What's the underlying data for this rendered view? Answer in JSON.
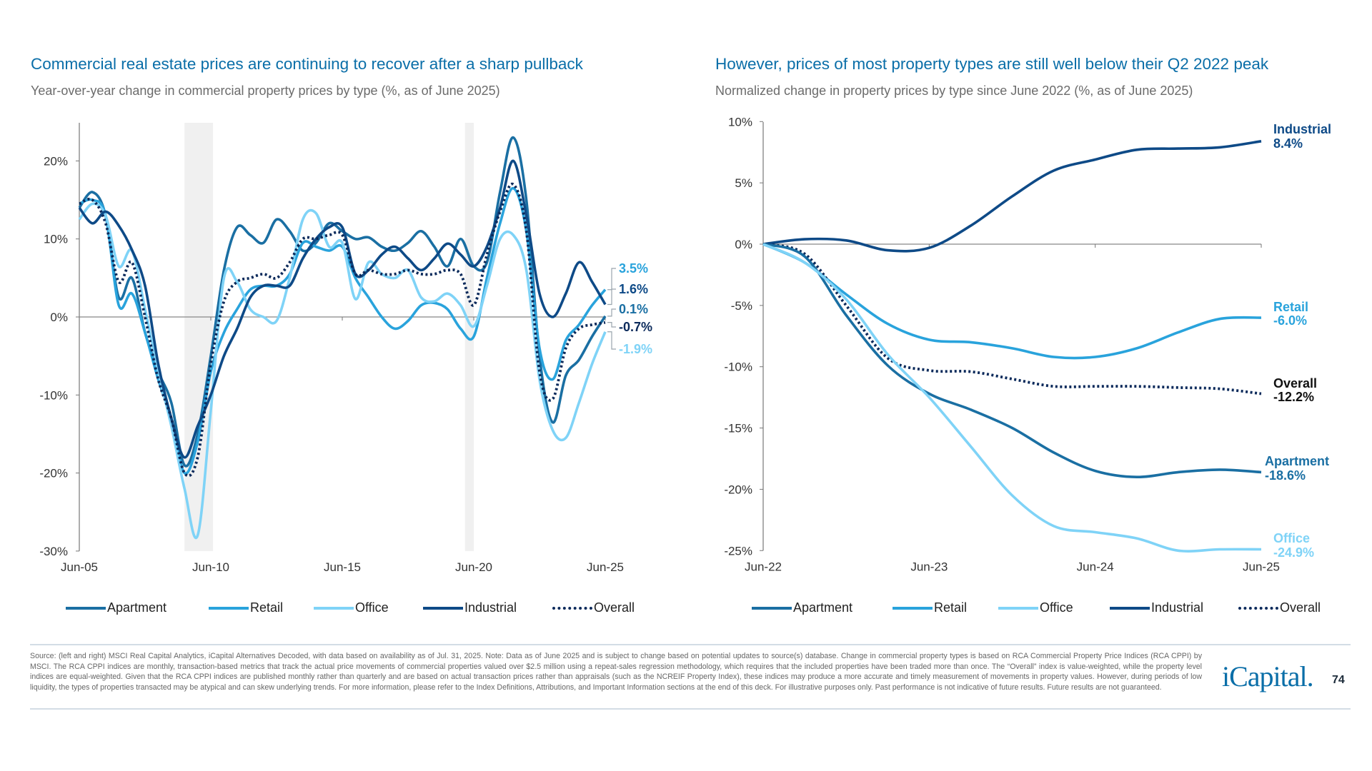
{
  "left": {
    "title": "Commercial real estate prices are continuing to recover after a sharp pullback",
    "subtitle": "Year-over-year change in commercial property prices by type (%, as of June 2025)"
  },
  "right": {
    "title": "However, prices of most property types are still well below their Q2 2022 peak",
    "subtitle": "Normalized change in property prices by type since June 2022 (%, as of June 2025)"
  },
  "legend": [
    {
      "label": "Apartment",
      "color": "#1a6fa3",
      "style": "solid"
    },
    {
      "label": "Retail",
      "color": "#29a3dc",
      "style": "solid"
    },
    {
      "label": "Office",
      "color": "#7fd3f7",
      "style": "solid"
    },
    {
      "label": "Industrial",
      "color": "#0e4a87",
      "style": "solid"
    },
    {
      "label": "Overall",
      "color": "#0b2a5b",
      "style": "dotted"
    }
  ],
  "chart_data": [
    {
      "type": "line",
      "title": "Commercial real estate prices are continuing to recover after a sharp pullback",
      "subtitle": "Year-over-year change in commercial property prices by type (%, as of June 2025)",
      "x": [
        "2005-06",
        "2005-12",
        "2006-06",
        "2006-12",
        "2007-06",
        "2007-12",
        "2008-06",
        "2008-12",
        "2009-06",
        "2009-12",
        "2010-06",
        "2010-12",
        "2011-06",
        "2011-12",
        "2012-06",
        "2012-12",
        "2013-06",
        "2013-12",
        "2014-06",
        "2014-12",
        "2015-06",
        "2015-12",
        "2016-06",
        "2016-12",
        "2017-06",
        "2017-12",
        "2018-06",
        "2018-12",
        "2019-06",
        "2019-12",
        "2020-06",
        "2020-12",
        "2021-06",
        "2021-12",
        "2022-06",
        "2022-12",
        "2023-06",
        "2023-12",
        "2024-06",
        "2024-12",
        "2025-06"
      ],
      "x_tick_labels": [
        "Jun-05",
        "Jun-10",
        "Jun-15",
        "Jun-20",
        "Jun-25"
      ],
      "y_tick_values": [
        20,
        10,
        0,
        -10,
        -20,
        -30
      ],
      "y_tick_labels": [
        "20%",
        "10%",
        "0%",
        "-10%",
        "-20%",
        "-30%"
      ],
      "ylim": [
        -30,
        25
      ],
      "grid": false,
      "shaded_periods": [
        [
          "2009-06",
          "2010-07"
        ],
        [
          "2020-02",
          "2020-06"
        ]
      ],
      "shade_color": "#f0f0f0",
      "series": [
        {
          "name": "Apartment",
          "color": "#1a6fa3",
          "dash": false,
          "end_label": "0.1%",
          "values": [
            14,
            16,
            13,
            2.5,
            5,
            -2,
            -7,
            -11,
            -19,
            -15,
            -5,
            6,
            11.5,
            10.5,
            9.5,
            12.5,
            11,
            8.5,
            9.5,
            12,
            11,
            10,
            10.2,
            9,
            8.5,
            9.5,
            11,
            9,
            6.5,
            10,
            6.5,
            7,
            16,
            23,
            15,
            -5,
            -13.5,
            -7.5,
            -5.5,
            -2.5,
            0.1
          ]
        },
        {
          "name": "Retail",
          "color": "#29a3dc",
          "dash": false,
          "end_label": "3.5%",
          "values": [
            14.5,
            15,
            13,
            1.5,
            3,
            -2,
            -8,
            -13,
            -20,
            -16,
            -7,
            -2,
            1,
            3.5,
            4,
            4,
            5.5,
            9.5,
            9,
            8.5,
            9,
            5,
            2.5,
            0,
            -1.5,
            -0.5,
            1.5,
            1.8,
            1,
            -1.5,
            -2.5,
            5,
            12,
            16.5,
            11,
            -4,
            -8,
            -3,
            -1,
            1.5,
            3.5
          ]
        },
        {
          "name": "Office",
          "color": "#7fd3f7",
          "dash": false,
          "end_label": "-1.9%",
          "values": [
            12.5,
            14.5,
            13,
            6.5,
            8.5,
            1,
            -7,
            -14,
            -22,
            -28,
            -12,
            5,
            4.5,
            1,
            0,
            -0.5,
            5,
            12.5,
            13.3,
            9,
            9.5,
            2.3,
            7,
            5.5,
            5,
            6,
            2.5,
            2,
            3,
            1.5,
            -1.2,
            4,
            10,
            10.5,
            6,
            -8,
            -14.5,
            -15.5,
            -11,
            -6,
            -1.9
          ]
        },
        {
          "name": "Industrial",
          "color": "#0e4a87",
          "dash": false,
          "end_label": "1.6%",
          "values": [
            14,
            12,
            13.5,
            11.7,
            8.6,
            4,
            -6,
            -13,
            -18,
            -14,
            -10,
            -5,
            -1.5,
            2.5,
            4,
            4,
            4,
            7.5,
            10,
            11.5,
            11.5,
            5.5,
            6,
            8,
            9,
            7.5,
            6,
            7.5,
            9.4,
            8,
            6.5,
            9,
            14,
            20,
            13,
            3,
            0,
            3,
            7,
            4.5,
            1.6
          ]
        },
        {
          "name": "Overall",
          "color": "#0b2a5b",
          "dash": true,
          "end_label": "-0.7%",
          "values": [
            14.5,
            15,
            12,
            4.5,
            7,
            0,
            -8,
            -13,
            -20,
            -18,
            -6,
            2,
            4.5,
            5,
            5.5,
            5,
            7,
            10,
            10,
            10.5,
            10.5,
            5.5,
            6,
            5.5,
            5.5,
            6,
            5.5,
            5.5,
            6,
            5.5,
            1.5,
            8,
            13.5,
            17,
            11,
            -7,
            -10.5,
            -4,
            -1.5,
            -1,
            -0.7
          ]
        }
      ]
    },
    {
      "type": "line",
      "title": "However, prices of most property types are still well below their Q2 2022 peak",
      "subtitle": "Normalized change in property prices by type since June 2022 (%, as of June 2025)",
      "x": [
        "2022-06",
        "2022-09",
        "2022-12",
        "2023-03",
        "2023-06",
        "2023-09",
        "2023-12",
        "2024-03",
        "2024-06",
        "2024-09",
        "2024-12",
        "2025-03",
        "2025-06"
      ],
      "x_tick_labels": [
        "Jun-22",
        "Jun-23",
        "Jun-24",
        "Jun-25"
      ],
      "y_tick_values": [
        10,
        5,
        0,
        -5,
        -10,
        -15,
        -20,
        -25
      ],
      "y_tick_labels": [
        "10%",
        "5%",
        "0%",
        "-5%",
        "-10%",
        "-15%",
        "-20%",
        "-25%"
      ],
      "ylim": [
        -25,
        10
      ],
      "grid": false,
      "series": [
        {
          "name": "Industrial",
          "color": "#0e4a87",
          "dash": false,
          "end_label": "8.4%",
          "values": [
            0,
            0.4,
            0.3,
            -0.5,
            -0.3,
            1.5,
            3.9,
            6,
            6.9,
            7.7,
            7.8,
            7.9,
            8.4
          ]
        },
        {
          "name": "Retail",
          "color": "#29a3dc",
          "dash": false,
          "end_label": "-6.0%",
          "values": [
            0,
            -1.5,
            -4.1,
            -6.5,
            -7.8,
            -8,
            -8.5,
            -9.2,
            -9.2,
            -8.5,
            -7.2,
            -6.1,
            -6.0
          ]
        },
        {
          "name": "Overall",
          "color": "#0b2a5b",
          "dash": true,
          "end_label": "-12.2%",
          "values": [
            0,
            -0.8,
            -5,
            -9.3,
            -10.3,
            -10.4,
            -11,
            -11.6,
            -11.6,
            -11.6,
            -11.7,
            -11.8,
            -12.2
          ]
        },
        {
          "name": "Apartment",
          "color": "#1a6fa3",
          "dash": false,
          "end_label": "-18.6%",
          "values": [
            0,
            -1,
            -5.8,
            -9.9,
            -12.2,
            -13.5,
            -15,
            -17,
            -18.5,
            -19,
            -18.6,
            -18.4,
            -18.6
          ]
        },
        {
          "name": "Office",
          "color": "#7fd3f7",
          "dash": false,
          "end_label": "-24.9%",
          "values": [
            0,
            -1.5,
            -4.5,
            -9,
            -12.5,
            -16.5,
            -20.5,
            -23,
            -23.5,
            -24,
            -25,
            -24.9,
            -24.9
          ]
        }
      ]
    }
  ],
  "footer": {
    "text": "Source: (left and right) MSCI Real Capital Analytics, iCapital Alternatives Decoded, with data based on availability as of Jul. 31, 2025. Note: Data as of June 2025 and is subject to change based on potential updates to source(s) database. Change in commercial property types is based on RCA Commercial Property Price Indices (RCA CPPI) by MSCI. The RCA CPPI indices are monthly, transaction-based metrics that track the actual price movements of commercial properties valued over $2.5 million using a repeat-sales regression methodology, which requires that the included properties have been traded more than once. The “Overall” index is value-weighted, while the property level indices are equal-weighted. Given that the RCA CPPI indices are published monthly rather than quarterly and are based on actual transaction prices rather than appraisals (such as the NCREIF Property Index), these indices may produce a more accurate and timely measurement of movements in property values. However, during periods of low liquidity, the types of properties transacted may be atypical and can skew underlying trends. For more information, please refer to the Index Definitions, Attributions, and Important Information sections at the end of this deck. For illustrative purposes only. Past performance is not indicative of future results. Future results are not guaranteed.",
    "logo": "iCapital.",
    "page_number": "74"
  }
}
